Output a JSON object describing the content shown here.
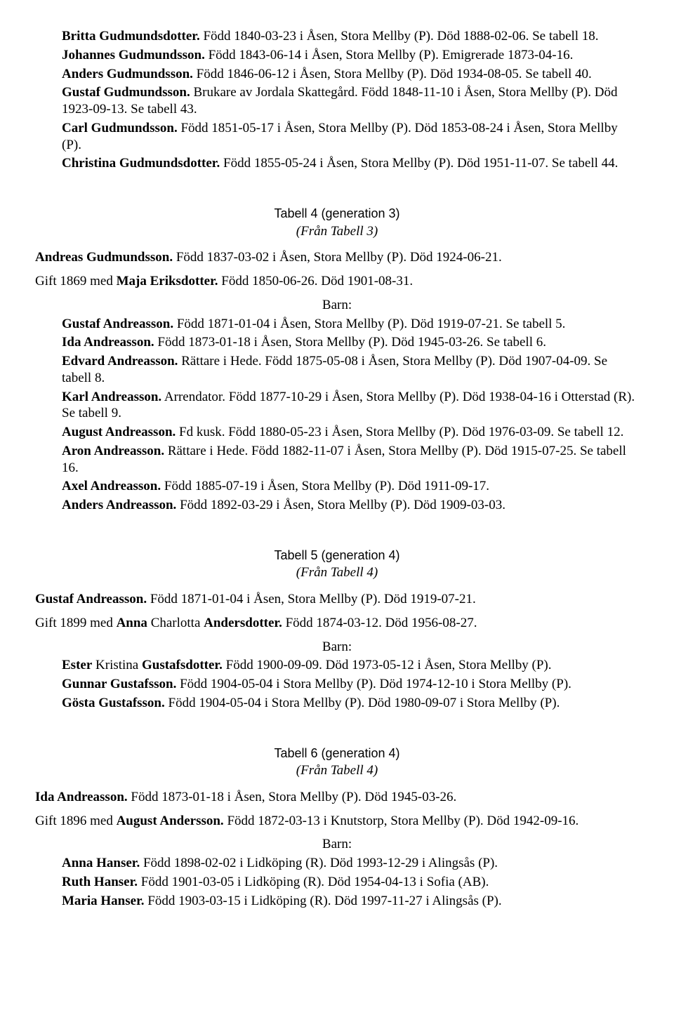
{
  "intro_children": [
    {
      "html": "<b>Britta Gudmundsdotter.</b> Född 1840-03-23 i Åsen, Stora Mellby (P). Död 1888-02-06. Se tabell 18."
    },
    {
      "html": "<b>Johannes Gudmundsson.</b> Född 1843-06-14 i Åsen, Stora Mellby (P). Emigrerade 1873-04-16."
    },
    {
      "html": "<b>Anders Gudmundsson.</b> Född 1846-06-12 i Åsen, Stora Mellby (P). Död 1934-08-05. Se tabell 40."
    },
    {
      "html": "<b>Gustaf Gudmundsson.</b> Brukare av Jordala Skattegård. Född 1848-11-10 i Åsen, Stora Mellby (P). Död 1923-09-13. Se tabell 43."
    },
    {
      "html": "<b>Carl Gudmundsson.</b> Född 1851-05-17 i Åsen, Stora Mellby (P). Död 1853-08-24 i Åsen, Stora Mellby (P)."
    },
    {
      "html": "<b>Christina Gudmundsdotter.</b> Född 1855-05-24 i Åsen, Stora Mellby (P). Död 1951-11-07. Se tabell 44."
    }
  ],
  "tables": [
    {
      "header": "Tabell 4 (generation 3)",
      "from": "(Från Tabell 3)",
      "main": "<b>Andreas Gudmundsson.</b> Född 1837-03-02 i Åsen, Stora Mellby (P). Död 1924-06-21.",
      "gift": "Gift 1869 med <b>Maja Eriksdotter.</b> Född 1850-06-26. Död 1901-08-31.",
      "barn_label": "Barn:",
      "children": [
        {
          "html": "<b>Gustaf Andreasson.</b> Född 1871-01-04 i Åsen, Stora Mellby (P). Död 1919-07-21. Se tabell 5."
        },
        {
          "html": "<b>Ida Andreasson.</b> Född 1873-01-18 i Åsen, Stora Mellby (P). Död 1945-03-26. Se tabell 6."
        },
        {
          "html": "<b>Edvard Andreasson.</b> Rättare i Hede. Född 1875-05-08 i Åsen, Stora Mellby (P). Död 1907-04-09. Se tabell 8."
        },
        {
          "html": "<b>Karl Andreasson.</b> Arrendator. Född 1877-10-29 i Åsen, Stora Mellby (P). Död 1938-04-16 i Otterstad (R). Se tabell 9."
        },
        {
          "html": "<b>August Andreasson.</b> Fd kusk. Född 1880-05-23 i Åsen, Stora Mellby (P). Död 1976-03-09. Se tabell 12."
        },
        {
          "html": "<b>Aron Andreasson.</b> Rättare i Hede. Född 1882-11-07 i Åsen, Stora Mellby (P). Död 1915-07-25. Se tabell 16."
        },
        {
          "html": "<b>Axel Andreasson.</b> Född 1885-07-19 i Åsen, Stora Mellby (P). Död 1911-09-17."
        },
        {
          "html": "<b>Anders Andreasson.</b> Född 1892-03-29 i Åsen, Stora Mellby (P). Död 1909-03-03."
        }
      ]
    },
    {
      "header": "Tabell 5 (generation 4)",
      "from": "(Från Tabell 4)",
      "main": "<b>Gustaf Andreasson.</b> Född 1871-01-04 i Åsen, Stora Mellby (P). Död 1919-07-21.",
      "gift": "Gift 1899 med <b>Anna</b> Charlotta <b>Andersdotter.</b> Född 1874-03-12. Död 1956-08-27.",
      "barn_label": "Barn:",
      "children": [
        {
          "html": "<b>Ester</b> Kristina <b>Gustafsdotter.</b> Född 1900-09-09. Död 1973-05-12 i Åsen, Stora Mellby (P)."
        },
        {
          "html": "<b>Gunnar Gustafsson.</b> Född 1904-05-04 i Stora Mellby (P). Död 1974-12-10 i Stora Mellby (P)."
        },
        {
          "html": "<b>Gösta Gustafsson.</b> Född 1904-05-04 i Stora Mellby (P). Död 1980-09-07 i Stora Mellby (P)."
        }
      ]
    },
    {
      "header": "Tabell 6 (generation 4)",
      "from": "(Från Tabell 4)",
      "main": "<b>Ida Andreasson.</b> Född 1873-01-18 i Åsen, Stora Mellby (P). Död 1945-03-26.",
      "gift": "Gift 1896 med <b>August Andersson.</b> Född 1872-03-13 i Knutstorp, Stora Mellby (P). Död 1942-09-16.",
      "barn_label": "Barn:",
      "children": [
        {
          "html": "<b>Anna Hanser.</b> Född 1898-02-02 i Lidköping (R). Död 1993-12-29 i Alingsås (P)."
        },
        {
          "html": "<b>Ruth Hanser.</b> Född 1901-03-05 i Lidköping (R). Död 1954-04-13 i Sofia (AB)."
        },
        {
          "html": "<b>Maria Hanser.</b> Född 1903-03-15 i Lidköping (R). Död 1997-11-27 i Alingsås (P)."
        }
      ]
    }
  ]
}
